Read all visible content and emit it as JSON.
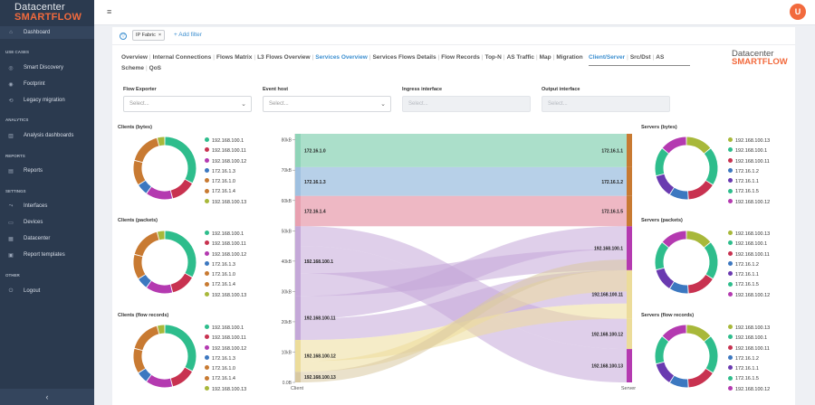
{
  "sidebar": {
    "logo_line1": "Datacenter",
    "logo_line2": "SMARTFLOW",
    "sections": [
      {
        "label": "USE CASES"
      },
      {
        "label": "ANALYTICS"
      },
      {
        "label": "REPORTS"
      },
      {
        "label": "SETTINGS"
      },
      {
        "label": "OTHER"
      }
    ],
    "items": [
      {
        "label": "Dashboard",
        "icon": "home-icon"
      },
      {
        "label": "Smart Discovery",
        "icon": "discovery-icon"
      },
      {
        "label": "Footprint",
        "icon": "pin-icon"
      },
      {
        "label": "Legacy migration",
        "icon": "migration-icon"
      },
      {
        "label": "Analysis dashboards",
        "icon": "chart-icon"
      },
      {
        "label": "Reports",
        "icon": "report-icon"
      },
      {
        "label": "Interfaces",
        "icon": "interface-icon"
      },
      {
        "label": "Devices",
        "icon": "device-icon"
      },
      {
        "label": "Datacenter",
        "icon": "datacenter-icon"
      },
      {
        "label": "Report templates",
        "icon": "template-icon"
      },
      {
        "label": "Logout",
        "icon": "logout-icon"
      }
    ],
    "collapse_glyph": "‹"
  },
  "topbar": {
    "menu_glyph": "≡",
    "avatar_letter": "U",
    "avatar_color": "#f26a3d"
  },
  "filterbar": {
    "chip_label": "IP Fabric",
    "chip_close": "×",
    "add_filter": "+ Add filter"
  },
  "tabs": [
    "Overview",
    "Internal Connections",
    "Flows Matrix",
    "L3 Flows Overview",
    "Services Overview",
    "Services Flows Details",
    "Flow Records",
    "Top-N",
    "AS Traffic",
    "Map",
    "Migration Scheme",
    "QoS"
  ],
  "active_tab": "Services Overview",
  "subtabs": [
    "Client/Server",
    "Src/Dst",
    "AS"
  ],
  "active_subtab": "Client/Server",
  "brand": {
    "line1": "Datacenter",
    "line2": "SMARTFLOW"
  },
  "filters": [
    {
      "label": "Flow Exporter",
      "placeholder": "Select...",
      "enabled": true
    },
    {
      "label": "Event host",
      "placeholder": "Select...",
      "enabled": true
    },
    {
      "label": "Ingress interface",
      "placeholder": "Select...",
      "enabled": false
    },
    {
      "label": "Output interface",
      "placeholder": "Select...",
      "enabled": false
    }
  ],
  "colors": {
    "green": "#2ebd8c",
    "red": "#c83250",
    "magenta": "#b43ab0",
    "blue": "#3c78c0",
    "orange": "#c87a32",
    "yellowgreen": "#a8b83a",
    "purple": "#6a3ab0",
    "accent": "#3c8fd0"
  },
  "donuts": [
    {
      "title": "Clients (bytes)",
      "legend": [
        {
          "label": "192.168.100.1",
          "color": "#2ebd8c"
        },
        {
          "label": "192.168.100.11",
          "color": "#c83250"
        },
        {
          "label": "192.168.100.12",
          "color": "#b43ab0"
        },
        {
          "label": "172.16.1.3",
          "color": "#3c78c0"
        },
        {
          "label": "172.16.1.0",
          "color": "#c87a32"
        },
        {
          "label": "172.16.1.4",
          "color": "#c87a32"
        },
        {
          "label": "192.168.100.13",
          "color": "#a8b83a"
        }
      ],
      "slices": [
        0.33,
        0.13,
        0.14,
        0.06,
        0.13,
        0.17,
        0.04
      ]
    },
    {
      "title": "Clients (packets)",
      "legend": [
        {
          "label": "192.168.100.1",
          "color": "#2ebd8c"
        },
        {
          "label": "192.168.100.11",
          "color": "#c83250"
        },
        {
          "label": "192.168.100.12",
          "color": "#b43ab0"
        },
        {
          "label": "172.16.1.3",
          "color": "#3c78c0"
        },
        {
          "label": "172.16.1.0",
          "color": "#c87a32"
        },
        {
          "label": "172.16.1.4",
          "color": "#c87a32"
        },
        {
          "label": "192.168.100.13",
          "color": "#a8b83a"
        }
      ],
      "slices": [
        0.33,
        0.13,
        0.14,
        0.06,
        0.13,
        0.17,
        0.04
      ]
    },
    {
      "title": "Clients (flow records)",
      "legend": [
        {
          "label": "192.168.100.1",
          "color": "#2ebd8c"
        },
        {
          "label": "192.168.100.11",
          "color": "#c83250"
        },
        {
          "label": "192.168.100.12",
          "color": "#b43ab0"
        },
        {
          "label": "172.16.1.3",
          "color": "#3c78c0"
        },
        {
          "label": "172.16.1.0",
          "color": "#c87a32"
        },
        {
          "label": "172.16.1.4",
          "color": "#c87a32"
        },
        {
          "label": "192.168.100.13",
          "color": "#a8b83a"
        }
      ],
      "slices": [
        0.33,
        0.13,
        0.14,
        0.06,
        0.13,
        0.17,
        0.04
      ]
    },
    {
      "title": "Servers (bytes)",
      "legend": [
        {
          "label": "192.168.100.13",
          "color": "#a8b83a"
        },
        {
          "label": "192.168.100.1",
          "color": "#2ebd8c"
        },
        {
          "label": "192.168.100.11",
          "color": "#c83250"
        },
        {
          "label": "172.16.1.2",
          "color": "#3c78c0"
        },
        {
          "label": "172.16.1.1",
          "color": "#6a3ab0"
        },
        {
          "label": "172.16.1.5",
          "color": "#2ebd8c"
        },
        {
          "label": "192.168.100.12",
          "color": "#b43ab0"
        }
      ],
      "slices": [
        0.14,
        0.2,
        0.15,
        0.1,
        0.12,
        0.15,
        0.14
      ]
    },
    {
      "title": "Servers (packets)",
      "legend": [
        {
          "label": "192.168.100.13",
          "color": "#a8b83a"
        },
        {
          "label": "192.168.100.1",
          "color": "#2ebd8c"
        },
        {
          "label": "192.168.100.11",
          "color": "#c83250"
        },
        {
          "label": "172.16.1.2",
          "color": "#3c78c0"
        },
        {
          "label": "172.16.1.1",
          "color": "#6a3ab0"
        },
        {
          "label": "172.16.1.5",
          "color": "#2ebd8c"
        },
        {
          "label": "192.168.100.12",
          "color": "#b43ab0"
        }
      ],
      "slices": [
        0.14,
        0.2,
        0.15,
        0.1,
        0.12,
        0.15,
        0.14
      ]
    },
    {
      "title": "Servers (flow records)",
      "legend": [
        {
          "label": "192.168.100.13",
          "color": "#a8b83a"
        },
        {
          "label": "192.168.100.1",
          "color": "#2ebd8c"
        },
        {
          "label": "192.168.100.11",
          "color": "#c83250"
        },
        {
          "label": "172.16.1.2",
          "color": "#3c78c0"
        },
        {
          "label": "172.16.1.1",
          "color": "#6a3ab0"
        },
        {
          "label": "172.16.1.5",
          "color": "#2ebd8c"
        },
        {
          "label": "192.168.100.12",
          "color": "#b43ab0"
        }
      ],
      "slices": [
        0.14,
        0.2,
        0.15,
        0.1,
        0.12,
        0.15,
        0.14
      ]
    }
  ],
  "chart_data": {
    "type": "sankey",
    "ylim": [
      0,
      82000
    ],
    "y_ticks": [
      "0.0B",
      "10kB",
      "20kB",
      "30kB",
      "40kB",
      "50kB",
      "60kB",
      "70kB",
      "80kB"
    ],
    "y_tick_values": [
      0,
      10000,
      20000,
      30000,
      40000,
      50000,
      60000,
      70000,
      80000
    ],
    "xlabel_left": "Client",
    "xlabel_right": "Server",
    "clients": [
      {
        "label": "172.16.1.0",
        "from": 71000,
        "to": 82000,
        "color": "#8fd4b8"
      },
      {
        "label": "172.16.1.3",
        "from": 61500,
        "to": 71000,
        "color": "#9fc0e0"
      },
      {
        "label": "172.16.1.4",
        "from": 51500,
        "to": 61500,
        "color": "#e8a0b0"
      },
      {
        "label": "192.168.100.1",
        "from": 28500,
        "to": 51500,
        "color": "#c4a8d8"
      },
      {
        "label": "192.168.100.11",
        "from": 14000,
        "to": 28500,
        "color": "#c4a8d8"
      },
      {
        "label": "192.168.100.12",
        "from": 3500,
        "to": 14000,
        "color": "#ecdc9a"
      },
      {
        "label": "192.168.100.13",
        "from": 0,
        "to": 3500,
        "color": "#d8c8a0"
      }
    ],
    "servers": [
      {
        "label": "172.16.1.1",
        "from": 71000,
        "to": 82000,
        "color": "#8fd4b8"
      },
      {
        "label": "172.16.1.2",
        "from": 61500,
        "to": 71000,
        "color": "#9fc0e0"
      },
      {
        "label": "172.16.1.5",
        "from": 51500,
        "to": 61500,
        "color": "#e8a0b0"
      },
      {
        "label": "192.168.100.1",
        "from": 37000,
        "to": 51500,
        "color": "#c4a8d8"
      },
      {
        "label": "192.168.100.11",
        "from": 21000,
        "to": 37000,
        "color": "#ecdc9a"
      },
      {
        "label": "192.168.100.12",
        "from": 11000,
        "to": 21000,
        "color": "#ecdc9a"
      },
      {
        "label": "192.168.100.13",
        "from": 0,
        "to": 11000,
        "color": "#c4a8d8"
      }
    ],
    "links": [
      {
        "c": [
          71000,
          82000
        ],
        "s": [
          71000,
          82000
        ],
        "color": "#8fd4b8"
      },
      {
        "c": [
          61500,
          71000
        ],
        "s": [
          61500,
          71000
        ],
        "color": "#9fc0e0"
      },
      {
        "c": [
          51500,
          61500
        ],
        "s": [
          51500,
          61500
        ],
        "color": "#e8a0b0"
      },
      {
        "c": [
          45000,
          51500
        ],
        "s": [
          11000,
          21000
        ],
        "color": "#c4a8d8"
      },
      {
        "c": [
          36000,
          45000
        ],
        "s": [
          0,
          11000
        ],
        "color": "#c4a8d8"
      },
      {
        "c": [
          28500,
          36000
        ],
        "s": [
          37000,
          44000
        ],
        "color": "#c4a8d8"
      },
      {
        "c": [
          21000,
          28500
        ],
        "s": [
          44000,
          51500
        ],
        "color": "#c4a8d8"
      },
      {
        "c": [
          14000,
          21000
        ],
        "s": [
          26000,
          37000
        ],
        "color": "#c4a8d8"
      },
      {
        "c": [
          7000,
          14000
        ],
        "s": [
          21000,
          26000
        ],
        "color": "#ecdc9a"
      },
      {
        "c": [
          3500,
          7000
        ],
        "s": [
          30000,
          37000
        ],
        "color": "#ecdc9a"
      },
      {
        "c": [
          0,
          3500
        ],
        "s": [
          37000,
          40500
        ],
        "color": "#d8c8a0"
      }
    ],
    "bar_colors_left": [
      "#8fd4b8",
      "#9fc0e0",
      "#e8a0b0",
      "#c4a8d8",
      "#c4a8d8",
      "#ecdc9a",
      "#d8c8a0"
    ],
    "bar_colors_right": [
      "#c87a32",
      "#c87a32",
      "#c87a32",
      "#b43ab0",
      "#ecdc9a",
      "#ecdc9a",
      "#b43ab0"
    ]
  }
}
